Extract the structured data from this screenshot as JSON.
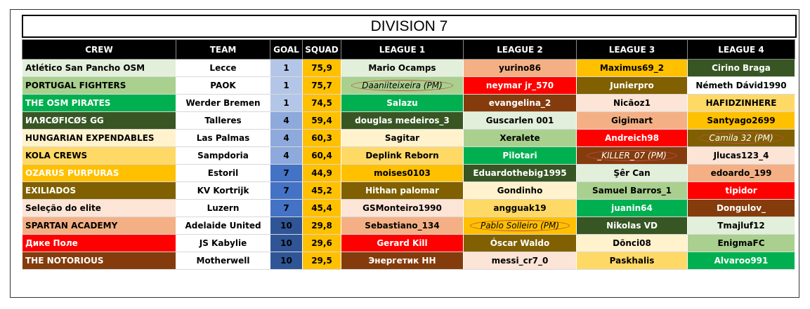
{
  "title": "DIVISION 7",
  "headers": [
    "CREW",
    "TEAM",
    "GOAL",
    "SQUAD",
    "LEAGUE 1",
    "LEAGUE 2",
    "LEAGUE 3",
    "LEAGUE 4"
  ],
  "rows": [
    {
      "crew": "Atlético San Pancho OSM",
      "crew_bg": "#e2efda",
      "crew_fg": "#000",
      "team": "Lecce",
      "goal": "1",
      "goal_bg": "#b4c6e7",
      "squad": "75,9",
      "lg": [
        {
          "t": "Mario Ocamps",
          "bg": "#e2efda",
          "fg": "#000"
        },
        {
          "t": "yurino86",
          "bg": "#f4b084",
          "fg": "#000"
        },
        {
          "t": "Maximus69_2",
          "bg": "#ffc000",
          "fg": "#000"
        },
        {
          "t": "Cirino Braga",
          "bg": "#375623",
          "fg": "#fff"
        }
      ]
    },
    {
      "crew": "PORTUGAL FIGHTERS",
      "crew_bg": "#a9d08e",
      "crew_fg": "#000",
      "team": "PAOK",
      "goal": "1",
      "goal_bg": "#b4c6e7",
      "squad": "75,7",
      "lg": [
        {
          "t": "Daaniiteixeira (PM)",
          "bg": "#a9d08e",
          "fg": "#000",
          "oval": true
        },
        {
          "t": "neymar jr_570",
          "bg": "#ff0000",
          "fg": "#fff"
        },
        {
          "t": "Junierpro",
          "bg": "#806000",
          "fg": "#fff"
        },
        {
          "t": "Németh Dávid1990",
          "bg": "#ffffff",
          "fg": "#000"
        }
      ]
    },
    {
      "crew": "THE OSM PIRATES",
      "crew_bg": "#00b050",
      "crew_fg": "#fff",
      "team": "Werder Bremen",
      "goal": "1",
      "goal_bg": "#b4c6e7",
      "squad": "74,5",
      "lg": [
        {
          "t": "Salazu",
          "bg": "#00b050",
          "fg": "#fff"
        },
        {
          "t": "evangelina_2",
          "bg": "#843c0c",
          "fg": "#fff"
        },
        {
          "t": "Nicãoz1",
          "bg": "#fce4d6",
          "fg": "#000"
        },
        {
          "t": "HAFIDZINHERE",
          "bg": "#ffd966",
          "fg": "#000"
        }
      ]
    },
    {
      "crew": "ИΛЯCØFICØS GG",
      "crew_bg": "#375623",
      "crew_fg": "#fff",
      "team": "Talleres",
      "goal": "4",
      "goal_bg": "#8ea9db",
      "squad": "59,4",
      "lg": [
        {
          "t": "douglas medeiros_3",
          "bg": "#375623",
          "fg": "#fff"
        },
        {
          "t": "Guscarlen 001",
          "bg": "#e2efda",
          "fg": "#000"
        },
        {
          "t": "Gigimart",
          "bg": "#f4b084",
          "fg": "#000"
        },
        {
          "t": "Santyago2699",
          "bg": "#ffc000",
          "fg": "#000"
        }
      ]
    },
    {
      "crew": "HUNGARIAN EXPENDABLES",
      "crew_bg": "#fff2cc",
      "crew_fg": "#000",
      "team": "Las Palmas",
      "goal": "4",
      "goal_bg": "#8ea9db",
      "squad": "60,3",
      "lg": [
        {
          "t": "Sagitar",
          "bg": "#fff2cc",
          "fg": "#000"
        },
        {
          "t": "Xeralete",
          "bg": "#a9d08e",
          "fg": "#000"
        },
        {
          "t": "Andreich98",
          "bg": "#ff0000",
          "fg": "#fff"
        },
        {
          "t": "Camila 32 (PM)",
          "bg": "#806000",
          "fg": "#fff",
          "oval": true
        }
      ]
    },
    {
      "crew": "KOLA CREWS",
      "crew_bg": "#ffd966",
      "crew_fg": "#000",
      "team": "Sampdoria",
      "goal": "4",
      "goal_bg": "#8ea9db",
      "squad": "60,4",
      "lg": [
        {
          "t": "Deplink Reborn",
          "bg": "#ffd966",
          "fg": "#000"
        },
        {
          "t": "Pilotari",
          "bg": "#00b050",
          "fg": "#fff"
        },
        {
          "t": "_KILLER_07 (PM)",
          "bg": "#843c0c",
          "fg": "#fff",
          "oval": true
        },
        {
          "t": "Jlucas123_4",
          "bg": "#fce4d6",
          "fg": "#000"
        }
      ]
    },
    {
      "crew": "OZARUS PURPURAS",
      "crew_bg": "#ffc000",
      "crew_fg": "#fff",
      "team": "Estoril",
      "goal": "7",
      "goal_bg": "#4472c4",
      "squad": "44,9",
      "lg": [
        {
          "t": "moises0103",
          "bg": "#ffc000",
          "fg": "#000"
        },
        {
          "t": "Eduardothebig1995",
          "bg": "#375623",
          "fg": "#fff"
        },
        {
          "t": "Şêr Can",
          "bg": "#e2efda",
          "fg": "#000"
        },
        {
          "t": "edoardo_199",
          "bg": "#f4b084",
          "fg": "#000"
        }
      ]
    },
    {
      "crew": "EXILIADOS",
      "crew_bg": "#806000",
      "crew_fg": "#fff",
      "team": "KV Kortrijk",
      "goal": "7",
      "goal_bg": "#4472c4",
      "squad": "45,2",
      "lg": [
        {
          "t": "Hithan palomar",
          "bg": "#806000",
          "fg": "#fff"
        },
        {
          "t": "Gondinho",
          "bg": "#fff2cc",
          "fg": "#000"
        },
        {
          "t": "Samuel Barros_1",
          "bg": "#a9d08e",
          "fg": "#000"
        },
        {
          "t": "tipidor",
          "bg": "#ff0000",
          "fg": "#fff"
        }
      ]
    },
    {
      "crew": "Seleção do elite",
      "crew_bg": "#fce4d6",
      "crew_fg": "#000",
      "team": "Luzern",
      "goal": "7",
      "goal_bg": "#4472c4",
      "squad": "45,4",
      "lg": [
        {
          "t": "GSMonteiro1990",
          "bg": "#fce4d6",
          "fg": "#000"
        },
        {
          "t": "angguak19",
          "bg": "#ffd966",
          "fg": "#000"
        },
        {
          "t": "juanin64",
          "bg": "#00b050",
          "fg": "#fff"
        },
        {
          "t": "Dongulov_",
          "bg": "#843c0c",
          "fg": "#fff"
        }
      ]
    },
    {
      "crew": "SPARTAN ACADEMY",
      "crew_bg": "#f4b084",
      "crew_fg": "#000",
      "team": "Adelaide United",
      "goal": "10",
      "goal_bg": "#2f5597",
      "squad": "29,8",
      "lg": [
        {
          "t": "Sebastiano_134",
          "bg": "#f4b084",
          "fg": "#000"
        },
        {
          "t": "Pablo Solleiro (PM)",
          "bg": "#ffc000",
          "fg": "#000",
          "oval": true
        },
        {
          "t": "Nikolas VD",
          "bg": "#375623",
          "fg": "#fff"
        },
        {
          "t": "Tmajluf12",
          "bg": "#e2efda",
          "fg": "#000"
        }
      ]
    },
    {
      "crew": "Дике Поле",
      "crew_bg": "#ff0000",
      "crew_fg": "#fff",
      "team": "JS Kabylie",
      "goal": "10",
      "goal_bg": "#2f5597",
      "squad": "29,6",
      "lg": [
        {
          "t": "Gerard Kill",
          "bg": "#ff0000",
          "fg": "#fff"
        },
        {
          "t": "Óscar Waldo",
          "bg": "#806000",
          "fg": "#fff"
        },
        {
          "t": "Dõnci08",
          "bg": "#fff2cc",
          "fg": "#000"
        },
        {
          "t": "EnigmaFC",
          "bg": "#a9d08e",
          "fg": "#000"
        }
      ]
    },
    {
      "crew": "THE NOTORIOUS",
      "crew_bg": "#843c0c",
      "crew_fg": "#fff",
      "team": "Motherwell",
      "goal": "10",
      "goal_bg": "#2f5597",
      "squad": "29,5",
      "lg": [
        {
          "t": "Энергетик НН",
          "bg": "#843c0c",
          "fg": "#fff"
        },
        {
          "t": "messi_cr7_0",
          "bg": "#fce4d6",
          "fg": "#000"
        },
        {
          "t": "Paskhalis",
          "bg": "#ffd966",
          "fg": "#000"
        },
        {
          "t": "Alvaroo991",
          "bg": "#00b050",
          "fg": "#fff"
        }
      ]
    }
  ]
}
